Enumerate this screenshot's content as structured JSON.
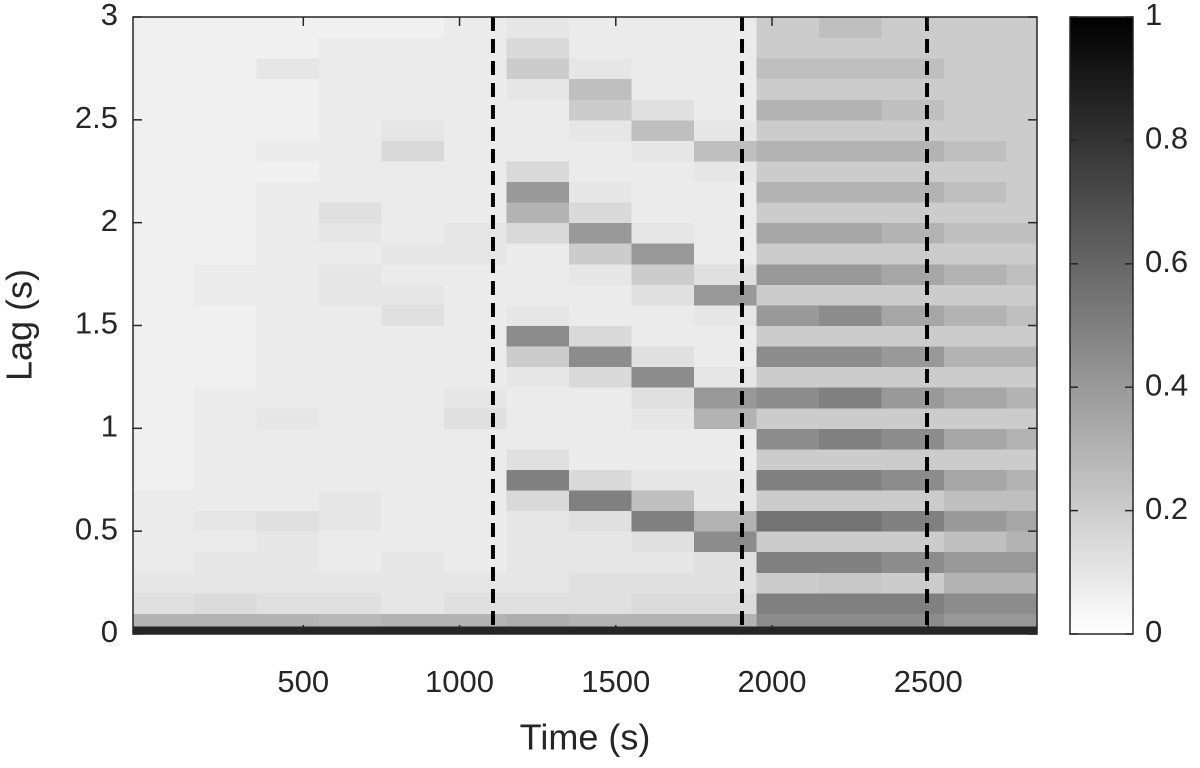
{
  "chart_data": {
    "type": "heatmap",
    "x_label": "Time (s)",
    "y_label": "Lag (s)",
    "xlim": [
      -45,
      2848
    ],
    "ylim": [
      0,
      3
    ],
    "xticks": [
      500,
      1000,
      1500,
      2000,
      2500
    ],
    "yticks": [
      0,
      0.5,
      1,
      1.5,
      2,
      2.5,
      3
    ],
    "colormap": "gray_r",
    "clim": [
      0,
      1
    ],
    "colorbar_ticks": [
      0,
      0.2,
      0.4,
      0.6,
      0.8,
      1
    ],
    "vlines": [
      1107,
      1904,
      2496
    ],
    "vline_color": "#000000",
    "vline_style": "dashed",
    "x_edges": [
      -45,
      150,
      350,
      550,
      750,
      950,
      1150,
      1350,
      1550,
      1750,
      1950,
      2150,
      2350,
      2550,
      2750,
      2848
    ],
    "y_edges": [
      0,
      0.04,
      0.1,
      0.2,
      0.3,
      0.4,
      0.5,
      0.6,
      0.7,
      0.8,
      0.9,
      1,
      1.1,
      1.2,
      1.3,
      1.4,
      1.5,
      1.6,
      1.7,
      1.8,
      1.9,
      2,
      2.1,
      2.2,
      2.3,
      2.4,
      2.5,
      2.6,
      2.7,
      2.8,
      2.9,
      3
    ],
    "z": [
      [
        0.85,
        0.85,
        0.85,
        0.85,
        0.85,
        0.85,
        0.85,
        0.85,
        0.85,
        0.85,
        0.85,
        0.85,
        0.85,
        0.85,
        0.85
      ],
      [
        0.3,
        0.3,
        0.3,
        0.28,
        0.3,
        0.3,
        0.32,
        0.3,
        0.3,
        0.3,
        0.45,
        0.45,
        0.45,
        0.4,
        0.4
      ],
      [
        0.12,
        0.14,
        0.12,
        0.12,
        0.1,
        0.12,
        0.12,
        0.12,
        0.14,
        0.14,
        0.5,
        0.5,
        0.5,
        0.45,
        0.45
      ],
      [
        0.1,
        0.1,
        0.1,
        0.1,
        0.1,
        0.1,
        0.1,
        0.12,
        0.12,
        0.12,
        0.2,
        0.22,
        0.2,
        0.3,
        0.3
      ],
      [
        0.08,
        0.1,
        0.1,
        0.08,
        0.1,
        0.08,
        0.1,
        0.1,
        0.1,
        0.12,
        0.5,
        0.5,
        0.45,
        0.4,
        0.4
      ],
      [
        0.08,
        0.08,
        0.1,
        0.08,
        0.08,
        0.08,
        0.1,
        0.1,
        0.12,
        0.45,
        0.2,
        0.2,
        0.2,
        0.25,
        0.3
      ],
      [
        0.08,
        0.1,
        0.12,
        0.1,
        0.08,
        0.08,
        0.1,
        0.12,
        0.5,
        0.3,
        0.55,
        0.55,
        0.5,
        0.4,
        0.35
      ],
      [
        0.08,
        0.08,
        0.08,
        0.1,
        0.08,
        0.08,
        0.15,
        0.5,
        0.25,
        0.1,
        0.2,
        0.2,
        0.2,
        0.25,
        0.25
      ],
      [
        0.06,
        0.08,
        0.08,
        0.08,
        0.08,
        0.08,
        0.5,
        0.15,
        0.1,
        0.1,
        0.5,
        0.5,
        0.45,
        0.35,
        0.3
      ],
      [
        0.06,
        0.08,
        0.08,
        0.08,
        0.08,
        0.08,
        0.12,
        0.08,
        0.08,
        0.08,
        0.2,
        0.2,
        0.2,
        0.2,
        0.2
      ],
      [
        0.06,
        0.08,
        0.08,
        0.08,
        0.08,
        0.08,
        0.08,
        0.08,
        0.08,
        0.08,
        0.45,
        0.5,
        0.45,
        0.35,
        0.3
      ],
      [
        0.06,
        0.08,
        0.1,
        0.08,
        0.08,
        0.12,
        0.08,
        0.08,
        0.1,
        0.3,
        0.2,
        0.2,
        0.2,
        0.2,
        0.2
      ],
      [
        0.06,
        0.08,
        0.08,
        0.08,
        0.08,
        0.1,
        0.08,
        0.08,
        0.12,
        0.4,
        0.45,
        0.5,
        0.4,
        0.35,
        0.3
      ],
      [
        0.06,
        0.06,
        0.08,
        0.08,
        0.08,
        0.08,
        0.1,
        0.15,
        0.45,
        0.1,
        0.2,
        0.2,
        0.2,
        0.2,
        0.2
      ],
      [
        0.06,
        0.06,
        0.08,
        0.08,
        0.08,
        0.08,
        0.2,
        0.45,
        0.12,
        0.08,
        0.45,
        0.45,
        0.4,
        0.3,
        0.3
      ],
      [
        0.06,
        0.06,
        0.08,
        0.08,
        0.08,
        0.08,
        0.45,
        0.15,
        0.08,
        0.08,
        0.2,
        0.2,
        0.2,
        0.2,
        0.2
      ],
      [
        0.06,
        0.06,
        0.08,
        0.08,
        0.12,
        0.08,
        0.1,
        0.08,
        0.08,
        0.1,
        0.4,
        0.45,
        0.35,
        0.3,
        0.25
      ],
      [
        0.06,
        0.08,
        0.08,
        0.1,
        0.1,
        0.08,
        0.08,
        0.08,
        0.12,
        0.4,
        0.2,
        0.2,
        0.2,
        0.2,
        0.2
      ],
      [
        0.06,
        0.08,
        0.08,
        0.1,
        0.08,
        0.08,
        0.08,
        0.1,
        0.2,
        0.12,
        0.4,
        0.4,
        0.35,
        0.3,
        0.25
      ],
      [
        0.06,
        0.06,
        0.08,
        0.08,
        0.1,
        0.1,
        0.08,
        0.2,
        0.4,
        0.08,
        0.2,
        0.2,
        0.2,
        0.2,
        0.2
      ],
      [
        0.06,
        0.06,
        0.08,
        0.1,
        0.08,
        0.1,
        0.15,
        0.4,
        0.1,
        0.08,
        0.35,
        0.35,
        0.3,
        0.25,
        0.25
      ],
      [
        0.06,
        0.06,
        0.08,
        0.12,
        0.08,
        0.08,
        0.3,
        0.15,
        0.08,
        0.08,
        0.2,
        0.2,
        0.2,
        0.2,
        0.2
      ],
      [
        0.06,
        0.06,
        0.08,
        0.08,
        0.08,
        0.08,
        0.4,
        0.1,
        0.08,
        0.08,
        0.3,
        0.3,
        0.3,
        0.25,
        0.2
      ],
      [
        0.06,
        0.06,
        0.06,
        0.08,
        0.08,
        0.08,
        0.15,
        0.08,
        0.08,
        0.1,
        0.2,
        0.2,
        0.2,
        0.2,
        0.2
      ],
      [
        0.06,
        0.06,
        0.08,
        0.08,
        0.15,
        0.08,
        0.08,
        0.08,
        0.1,
        0.25,
        0.3,
        0.3,
        0.3,
        0.25,
        0.2
      ],
      [
        0.06,
        0.06,
        0.06,
        0.08,
        0.1,
        0.08,
        0.08,
        0.1,
        0.25,
        0.1,
        0.2,
        0.2,
        0.2,
        0.2,
        0.2
      ],
      [
        0.06,
        0.06,
        0.06,
        0.08,
        0.08,
        0.08,
        0.08,
        0.2,
        0.12,
        0.08,
        0.3,
        0.3,
        0.25,
        0.2,
        0.2
      ],
      [
        0.06,
        0.06,
        0.06,
        0.08,
        0.08,
        0.08,
        0.1,
        0.25,
        0.08,
        0.08,
        0.2,
        0.2,
        0.2,
        0.2,
        0.2
      ],
      [
        0.06,
        0.06,
        0.1,
        0.08,
        0.08,
        0.08,
        0.2,
        0.1,
        0.08,
        0.08,
        0.25,
        0.25,
        0.25,
        0.2,
        0.2
      ],
      [
        0.06,
        0.06,
        0.06,
        0.08,
        0.08,
        0.08,
        0.15,
        0.08,
        0.08,
        0.08,
        0.2,
        0.2,
        0.2,
        0.2,
        0.2
      ],
      [
        0.06,
        0.06,
        0.06,
        0.06,
        0.06,
        0.08,
        0.1,
        0.08,
        0.08,
        0.08,
        0.2,
        0.25,
        0.2,
        0.2,
        0.2
      ]
    ]
  }
}
